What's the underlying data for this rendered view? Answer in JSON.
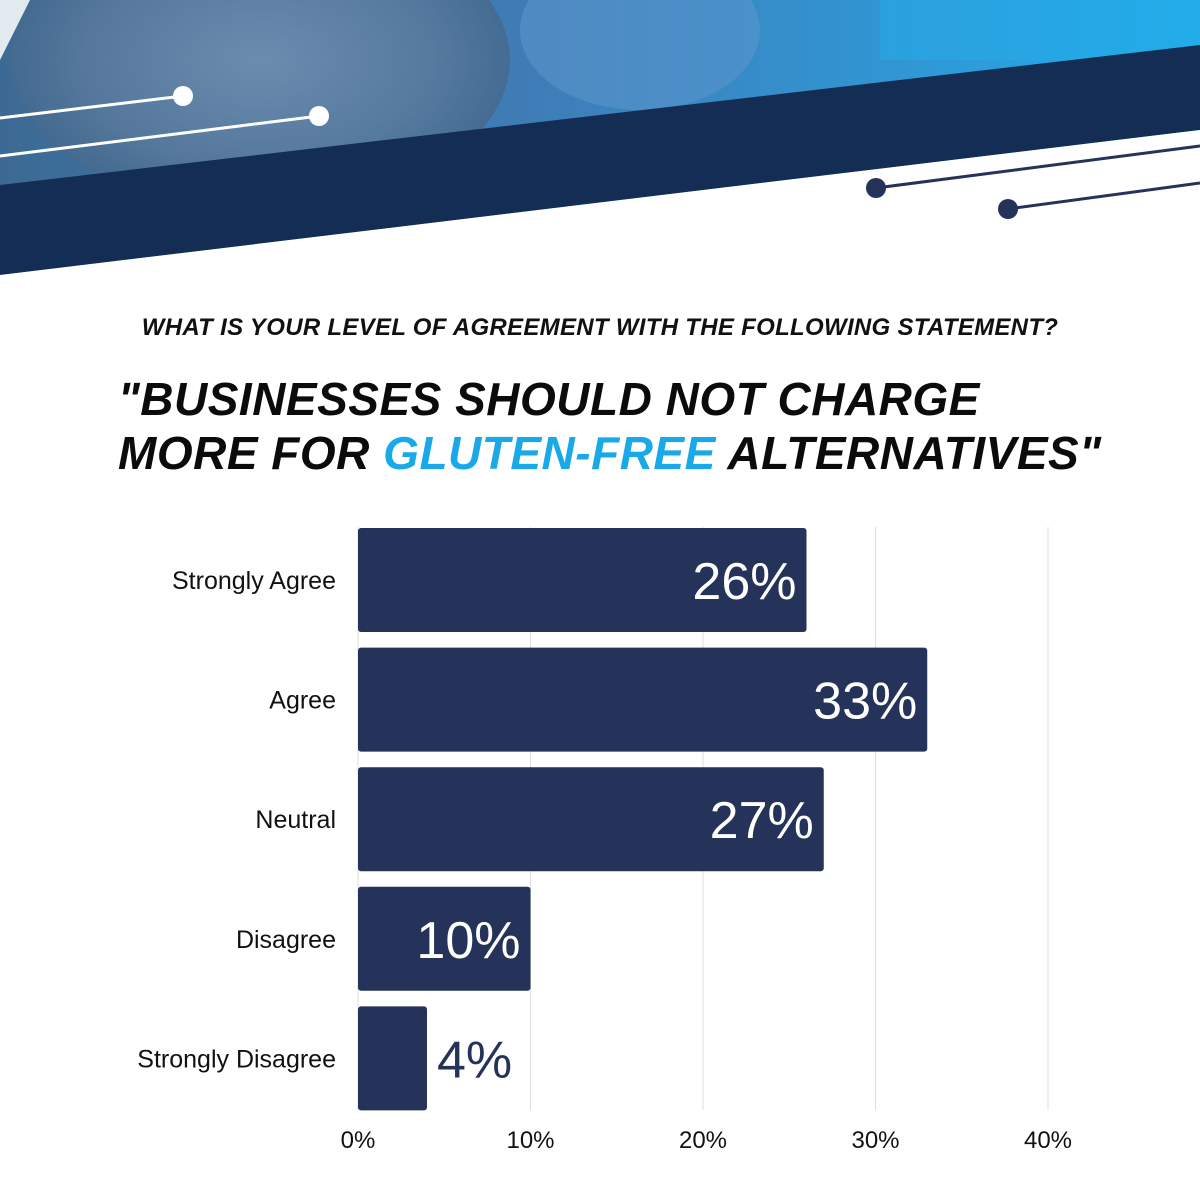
{
  "header": {
    "question": "WHAT IS YOUR LEVEL OF AGREEMENT WITH THE FOLLOWING STATEMENT?",
    "statement_line1": "\"BUSINESSES SHOULD NOT CHARGE",
    "statement_line2_pre": "MORE FOR ",
    "statement_line2_highlight": "GLUTEN-FREE",
    "statement_line2_post": " ALTERNATIVES\""
  },
  "colors": {
    "bar": "#253259",
    "highlight": "#19a8e8",
    "navy_band": "#132d54",
    "grid": "#dddddd"
  },
  "chart_data": {
    "type": "bar",
    "orientation": "horizontal",
    "categories": [
      "Strongly Agree",
      "Agree",
      "Neutral",
      "Disagree",
      "Strongly Disagree"
    ],
    "values": [
      26,
      33,
      27,
      10,
      4
    ],
    "value_labels": [
      "26%",
      "33%",
      "27%",
      "10%",
      "4%"
    ],
    "xlim": [
      0,
      40
    ],
    "xticks": [
      0,
      10,
      20,
      30,
      40
    ],
    "xtick_labels": [
      "0%",
      "10%",
      "20%",
      "30%",
      "40%"
    ],
    "grid": true
  }
}
